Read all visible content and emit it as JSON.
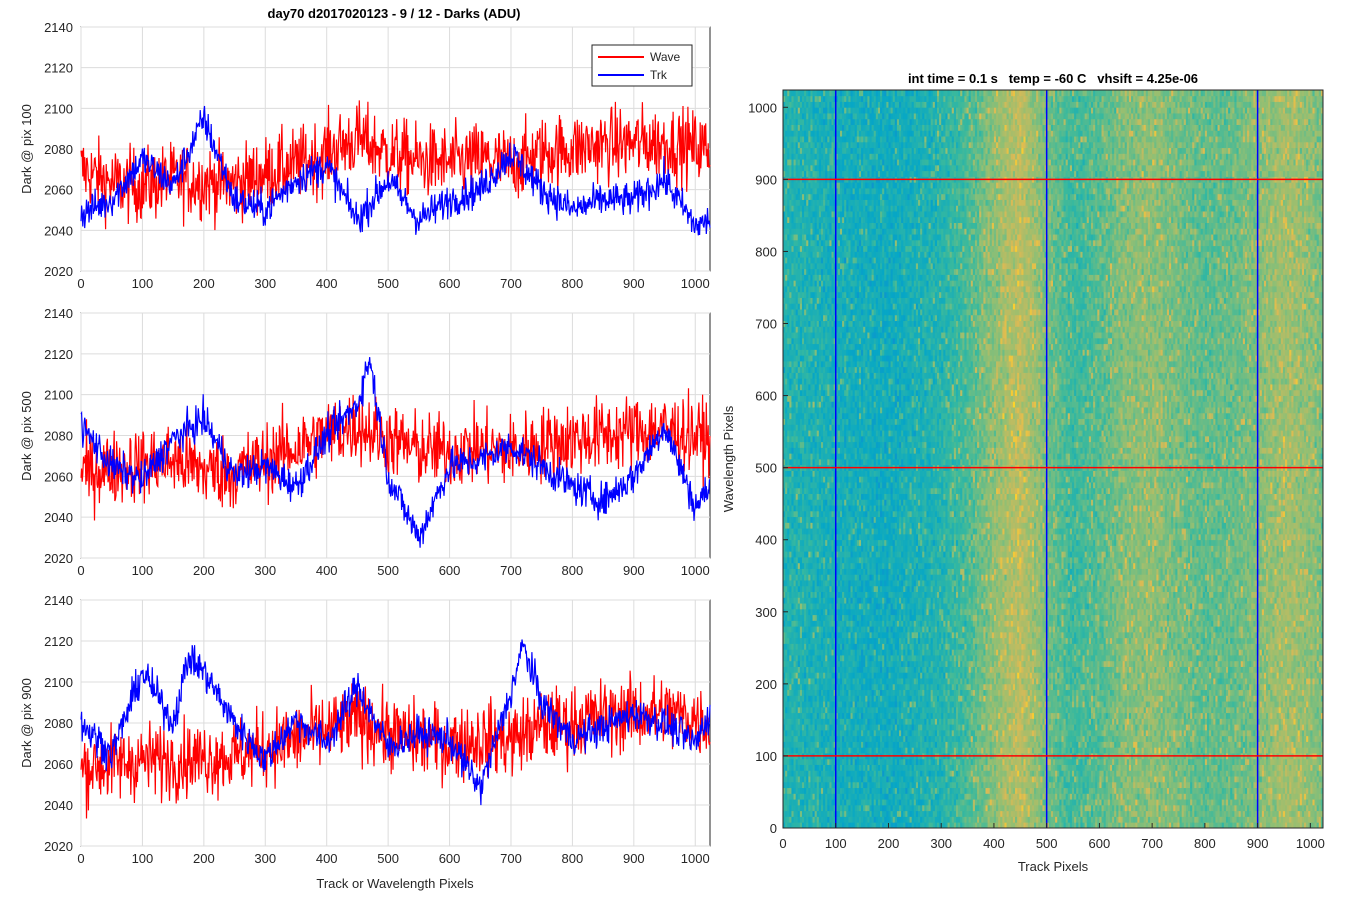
{
  "figure_title": "day70 d2017020123 - 9 / 12 - Darks (ADU)",
  "chart_data": [
    {
      "type": "line",
      "title": "day70 d2017020123 - 9 / 12 - Darks (ADU)",
      "xlabel": "",
      "ylabel": "Dark @ pix 100",
      "xlim": [
        0,
        1024
      ],
      "ylim": [
        2020,
        2140
      ],
      "xticks": [
        0,
        100,
        200,
        300,
        400,
        500,
        600,
        700,
        800,
        900,
        1000
      ],
      "yticks": [
        2020,
        2040,
        2060,
        2080,
        2100,
        2120,
        2140
      ],
      "grid": true,
      "legend": "top-right",
      "series": [
        {
          "name": "Wave",
          "color": "#ff0000",
          "x": [
            0,
            50,
            100,
            150,
            200,
            250,
            300,
            350,
            400,
            450,
            500,
            550,
            600,
            650,
            700,
            750,
            800,
            850,
            900,
            950,
            1000,
            1024
          ],
          "y": [
            2070,
            2063,
            2062,
            2065,
            2064,
            2063,
            2068,
            2072,
            2078,
            2085,
            2078,
            2074,
            2073,
            2075,
            2072,
            2078,
            2080,
            2082,
            2083,
            2083,
            2081,
            2080
          ]
        },
        {
          "name": "Trk",
          "color": "#0000ff",
          "x": [
            0,
            50,
            100,
            150,
            200,
            250,
            300,
            350,
            400,
            450,
            500,
            550,
            600,
            650,
            700,
            750,
            800,
            850,
            900,
            950,
            1000,
            1024
          ],
          "y": [
            2048,
            2055,
            2075,
            2062,
            2095,
            2055,
            2050,
            2065,
            2072,
            2045,
            2065,
            2045,
            2055,
            2060,
            2078,
            2060,
            2050,
            2055,
            2055,
            2065,
            2042,
            2045
          ]
        }
      ]
    },
    {
      "type": "line",
      "xlabel": "",
      "ylabel": "Dark @ pix 500",
      "xlim": [
        0,
        1024
      ],
      "ylim": [
        2020,
        2140
      ],
      "xticks": [
        0,
        100,
        200,
        300,
        400,
        500,
        600,
        700,
        800,
        900,
        1000
      ],
      "yticks": [
        2020,
        2040,
        2060,
        2080,
        2100,
        2120,
        2140
      ],
      "grid": true,
      "series": [
        {
          "name": "Wave",
          "color": "#ff0000",
          "x": [
            0,
            50,
            100,
            150,
            200,
            250,
            300,
            350,
            400,
            450,
            500,
            550,
            600,
            650,
            700,
            750,
            800,
            850,
            900,
            950,
            1000,
            1024
          ],
          "y": [
            2062,
            2064,
            2066,
            2068,
            2063,
            2062,
            2068,
            2074,
            2080,
            2085,
            2078,
            2073,
            2072,
            2074,
            2072,
            2076,
            2078,
            2080,
            2082,
            2083,
            2080,
            2078
          ]
        },
        {
          "name": "Trk",
          "color": "#0000ff",
          "x": [
            0,
            50,
            100,
            150,
            200,
            250,
            300,
            350,
            400,
            450,
            470,
            500,
            550,
            600,
            650,
            700,
            750,
            800,
            850,
            900,
            950,
            1000,
            1024
          ],
          "y": [
            2085,
            2065,
            2058,
            2078,
            2088,
            2060,
            2065,
            2055,
            2080,
            2095,
            2118,
            2060,
            2030,
            2065,
            2068,
            2075,
            2065,
            2055,
            2048,
            2060,
            2085,
            2045,
            2055
          ]
        }
      ]
    },
    {
      "type": "line",
      "xlabel": "Track or Wavelength Pixels",
      "ylabel": "Dark @ pix 900",
      "xlim": [
        0,
        1024
      ],
      "ylim": [
        2020,
        2140
      ],
      "xticks": [
        0,
        100,
        200,
        300,
        400,
        500,
        600,
        700,
        800,
        900,
        1000
      ],
      "yticks": [
        2020,
        2040,
        2060,
        2080,
        2100,
        2120,
        2140
      ],
      "grid": true,
      "series": [
        {
          "name": "Wave",
          "color": "#ff0000",
          "x": [
            0,
            50,
            100,
            150,
            200,
            250,
            300,
            350,
            400,
            450,
            500,
            550,
            600,
            650,
            700,
            750,
            800,
            850,
            900,
            950,
            1000,
            1024
          ],
          "y": [
            2058,
            2060,
            2062,
            2062,
            2063,
            2064,
            2068,
            2072,
            2076,
            2082,
            2075,
            2072,
            2070,
            2072,
            2072,
            2078,
            2080,
            2083,
            2085,
            2085,
            2082,
            2080
          ]
        },
        {
          "name": "Trk",
          "color": "#0000ff",
          "x": [
            0,
            50,
            100,
            150,
            175,
            200,
            250,
            300,
            350,
            400,
            450,
            500,
            550,
            600,
            650,
            700,
            720,
            750,
            800,
            850,
            900,
            950,
            1000,
            1024
          ],
          "y": [
            2080,
            2065,
            2105,
            2080,
            2112,
            2105,
            2080,
            2062,
            2082,
            2070,
            2098,
            2068,
            2075,
            2072,
            2048,
            2095,
            2118,
            2090,
            2072,
            2078,
            2085,
            2080,
            2070,
            2085
          ]
        }
      ]
    },
    {
      "type": "heatmap",
      "title": "int time = 0.1 s   temp = -60 C   vhsift = 4.25e-06",
      "xlabel": "Track Pixels",
      "ylabel": "Wavelength Pixels",
      "xlim": [
        0,
        1024
      ],
      "ylim": [
        0,
        1024
      ],
      "xticks": [
        0,
        100,
        200,
        300,
        400,
        500,
        600,
        700,
        800,
        900,
        1000
      ],
      "yticks": [
        0,
        100,
        200,
        300,
        400,
        500,
        600,
        700,
        800,
        900,
        1000
      ],
      "colormap": "parula",
      "column_intensity": {
        "x": [
          0,
          100,
          200,
          300,
          350,
          400,
          450,
          500,
          550,
          600,
          650,
          700,
          750,
          800,
          850,
          900,
          950,
          1000,
          1024
        ],
        "level": [
          0.45,
          0.42,
          0.4,
          0.45,
          0.52,
          0.62,
          0.7,
          0.58,
          0.5,
          0.54,
          0.6,
          0.62,
          0.58,
          0.55,
          0.56,
          0.6,
          0.65,
          0.62,
          0.58
        ]
      },
      "vertical_markers": {
        "x": [
          100,
          500,
          900
        ],
        "color": "#0000ff"
      },
      "horizontal_markers": {
        "y": [
          100,
          500,
          900
        ],
        "color": "#ff0000"
      }
    }
  ]
}
